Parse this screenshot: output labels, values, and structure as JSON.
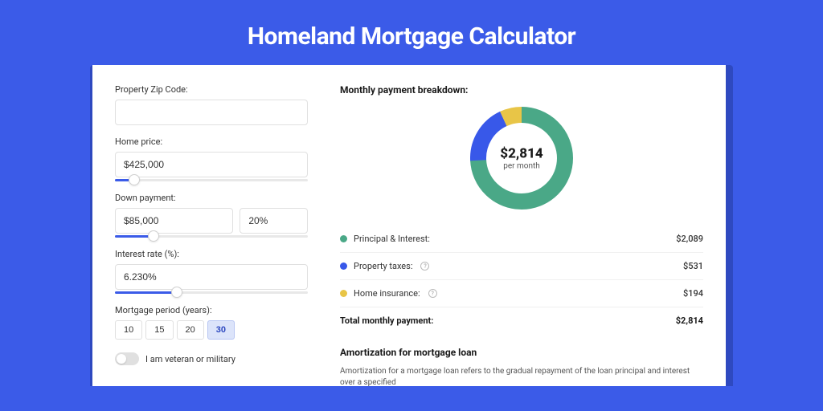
{
  "page_title": "Homeland Mortgage Calculator",
  "background_color": "#3b5be8",
  "card_background": "#ffffff",
  "form": {
    "zip": {
      "label": "Property Zip Code:",
      "value": ""
    },
    "price": {
      "label": "Home price:",
      "value": "$425,000",
      "slider_pct": 10
    },
    "down": {
      "label": "Down payment:",
      "value_amount": "$85,000",
      "value_pct": "20%",
      "slider_pct": 20
    },
    "rate": {
      "label": "Interest rate (%):",
      "value": "6.230%",
      "slider_pct": 32
    },
    "period": {
      "label": "Mortgage period (years):",
      "options": [
        "10",
        "15",
        "20",
        "30"
      ],
      "selected": "30"
    },
    "veteran": {
      "label": "I am veteran or military",
      "checked": false
    }
  },
  "breakdown": {
    "title": "Monthly payment breakdown:",
    "total_amount": "$2,814",
    "total_sub": "per month",
    "donut": {
      "size": 128,
      "stroke_width": 20,
      "background": "#ffffff",
      "slices": [
        {
          "label": "Principal & Interest:",
          "value": "$2,089",
          "pct": 74.2,
          "color": "#4aa887",
          "has_info": false
        },
        {
          "label": "Property taxes:",
          "value": "$531",
          "pct": 18.9,
          "color": "#3858e9",
          "has_info": true
        },
        {
          "label": "Home insurance:",
          "value": "$194",
          "pct": 6.9,
          "color": "#e8c547",
          "has_info": true
        }
      ]
    },
    "total_label": "Total monthly payment:",
    "total_value": "$2,814"
  },
  "amortization": {
    "title": "Amortization for mortgage loan",
    "text": "Amortization for a mortgage loan refers to the gradual repayment of the loan principal and interest over a specified"
  }
}
